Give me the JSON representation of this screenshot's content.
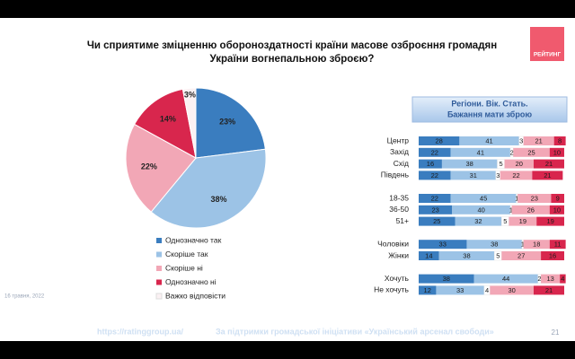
{
  "header": {
    "title": "Чи сприятиме зміцненню обороноздатності країни масове озброєння громадян України вогнепальною зброєю?",
    "logo": "РЕЙТИНГ"
  },
  "chart_data": [
    {
      "type": "pie",
      "categories": [
        "Однозначно так",
        "Скоріше так",
        "Скоріше ні",
        "Однозначно ні",
        "Важко відповісти"
      ],
      "values": [
        23,
        38,
        22,
        14,
        3
      ],
      "value_labels": [
        "23%",
        "38%",
        "22%",
        "14%",
        "3%"
      ],
      "colors": [
        "#3a7dbf",
        "#9cc3e6",
        "#f2a7b6",
        "#d8264d",
        "#fbf1f3"
      ]
    },
    {
      "type": "bar",
      "orientation": "horizontal",
      "stacked": true,
      "box_title": [
        "Регіони. Вік. Стать.",
        "Бажання мати зброю"
      ],
      "categories": [
        "Центр",
        "Захід",
        "Схід",
        "Південь",
        null,
        "18-35",
        "36-50",
        "51+",
        null,
        "Чоловіки",
        "Жінки",
        null,
        "Хочуть",
        "Не хочуть"
      ],
      "xlim": [
        0,
        100
      ],
      "series": [
        {
          "color": "#3a7dbf",
          "values": [
            28,
            22,
            16,
            22,
            null,
            22,
            23,
            25,
            null,
            33,
            14,
            null,
            38,
            12
          ]
        },
        {
          "color": "#9cc3e6",
          "values": [
            41,
            41,
            38,
            31,
            null,
            45,
            40,
            32,
            null,
            38,
            38,
            null,
            44,
            33
          ]
        },
        {
          "color": "#ffffff",
          "values": [
            3,
            2,
            5,
            3,
            null,
            1,
            1,
            5,
            null,
            1,
            5,
            null,
            2,
            4
          ]
        },
        {
          "color": "#f2a7b6",
          "values": [
            21,
            25,
            20,
            22,
            null,
            23,
            26,
            19,
            null,
            18,
            27,
            null,
            13,
            30
          ]
        },
        {
          "color": "#d8264d",
          "values": [
            8,
            10,
            21,
            21,
            null,
            9,
            10,
            19,
            null,
            11,
            16,
            null,
            4,
            21
          ]
        }
      ]
    }
  ],
  "footer": {
    "date": "16 травня, 2022",
    "url": "https://ratinggroup.ua/",
    "support": "За підтримки громадської ініціативи «Український арсенал свободи»",
    "page": "21"
  }
}
